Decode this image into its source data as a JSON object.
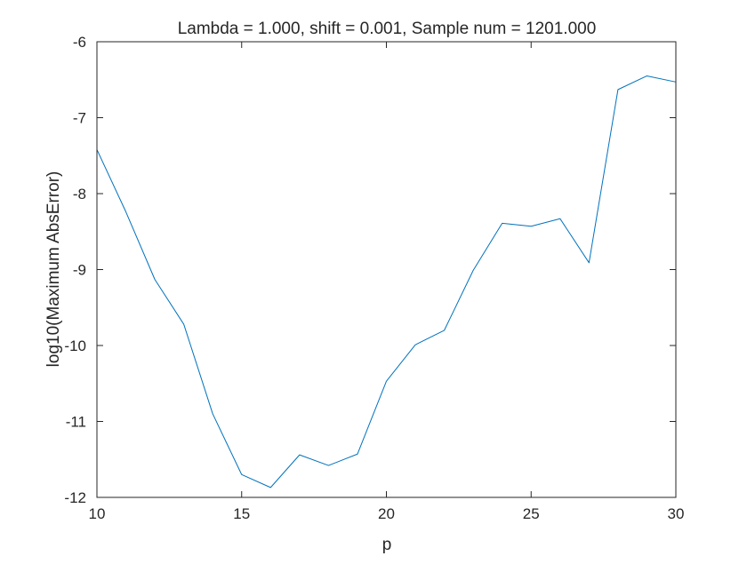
{
  "chart_data": {
    "type": "line",
    "title": "Lambda = 1.000, shift = 0.001, Sample num = 1201.000",
    "xlabel": "p",
    "ylabel": "log10(Maximum AbsError)",
    "xlim": [
      10,
      30
    ],
    "ylim": [
      -12,
      -6
    ],
    "xticks": [
      10,
      15,
      20,
      25,
      30
    ],
    "yticks": [
      -6,
      -7,
      -8,
      -9,
      -10,
      -11,
      -12
    ],
    "grid": false,
    "legend": "none",
    "series": [
      {
        "color": "#0072BD",
        "x": [
          10,
          11,
          12,
          13,
          14,
          15,
          16,
          17,
          18,
          19,
          20,
          21,
          22,
          23,
          24,
          25,
          26,
          27,
          28,
          29,
          30
        ],
        "values": [
          -7.42,
          -8.24,
          -9.13,
          -9.72,
          -10.9,
          -11.7,
          -11.87,
          -11.44,
          -11.58,
          -11.43,
          -10.47,
          -9.99,
          -9.8,
          -9.01,
          -8.39,
          -8.43,
          -8.33,
          -8.91,
          -6.63,
          -6.45,
          -6.53
        ]
      }
    ]
  }
}
